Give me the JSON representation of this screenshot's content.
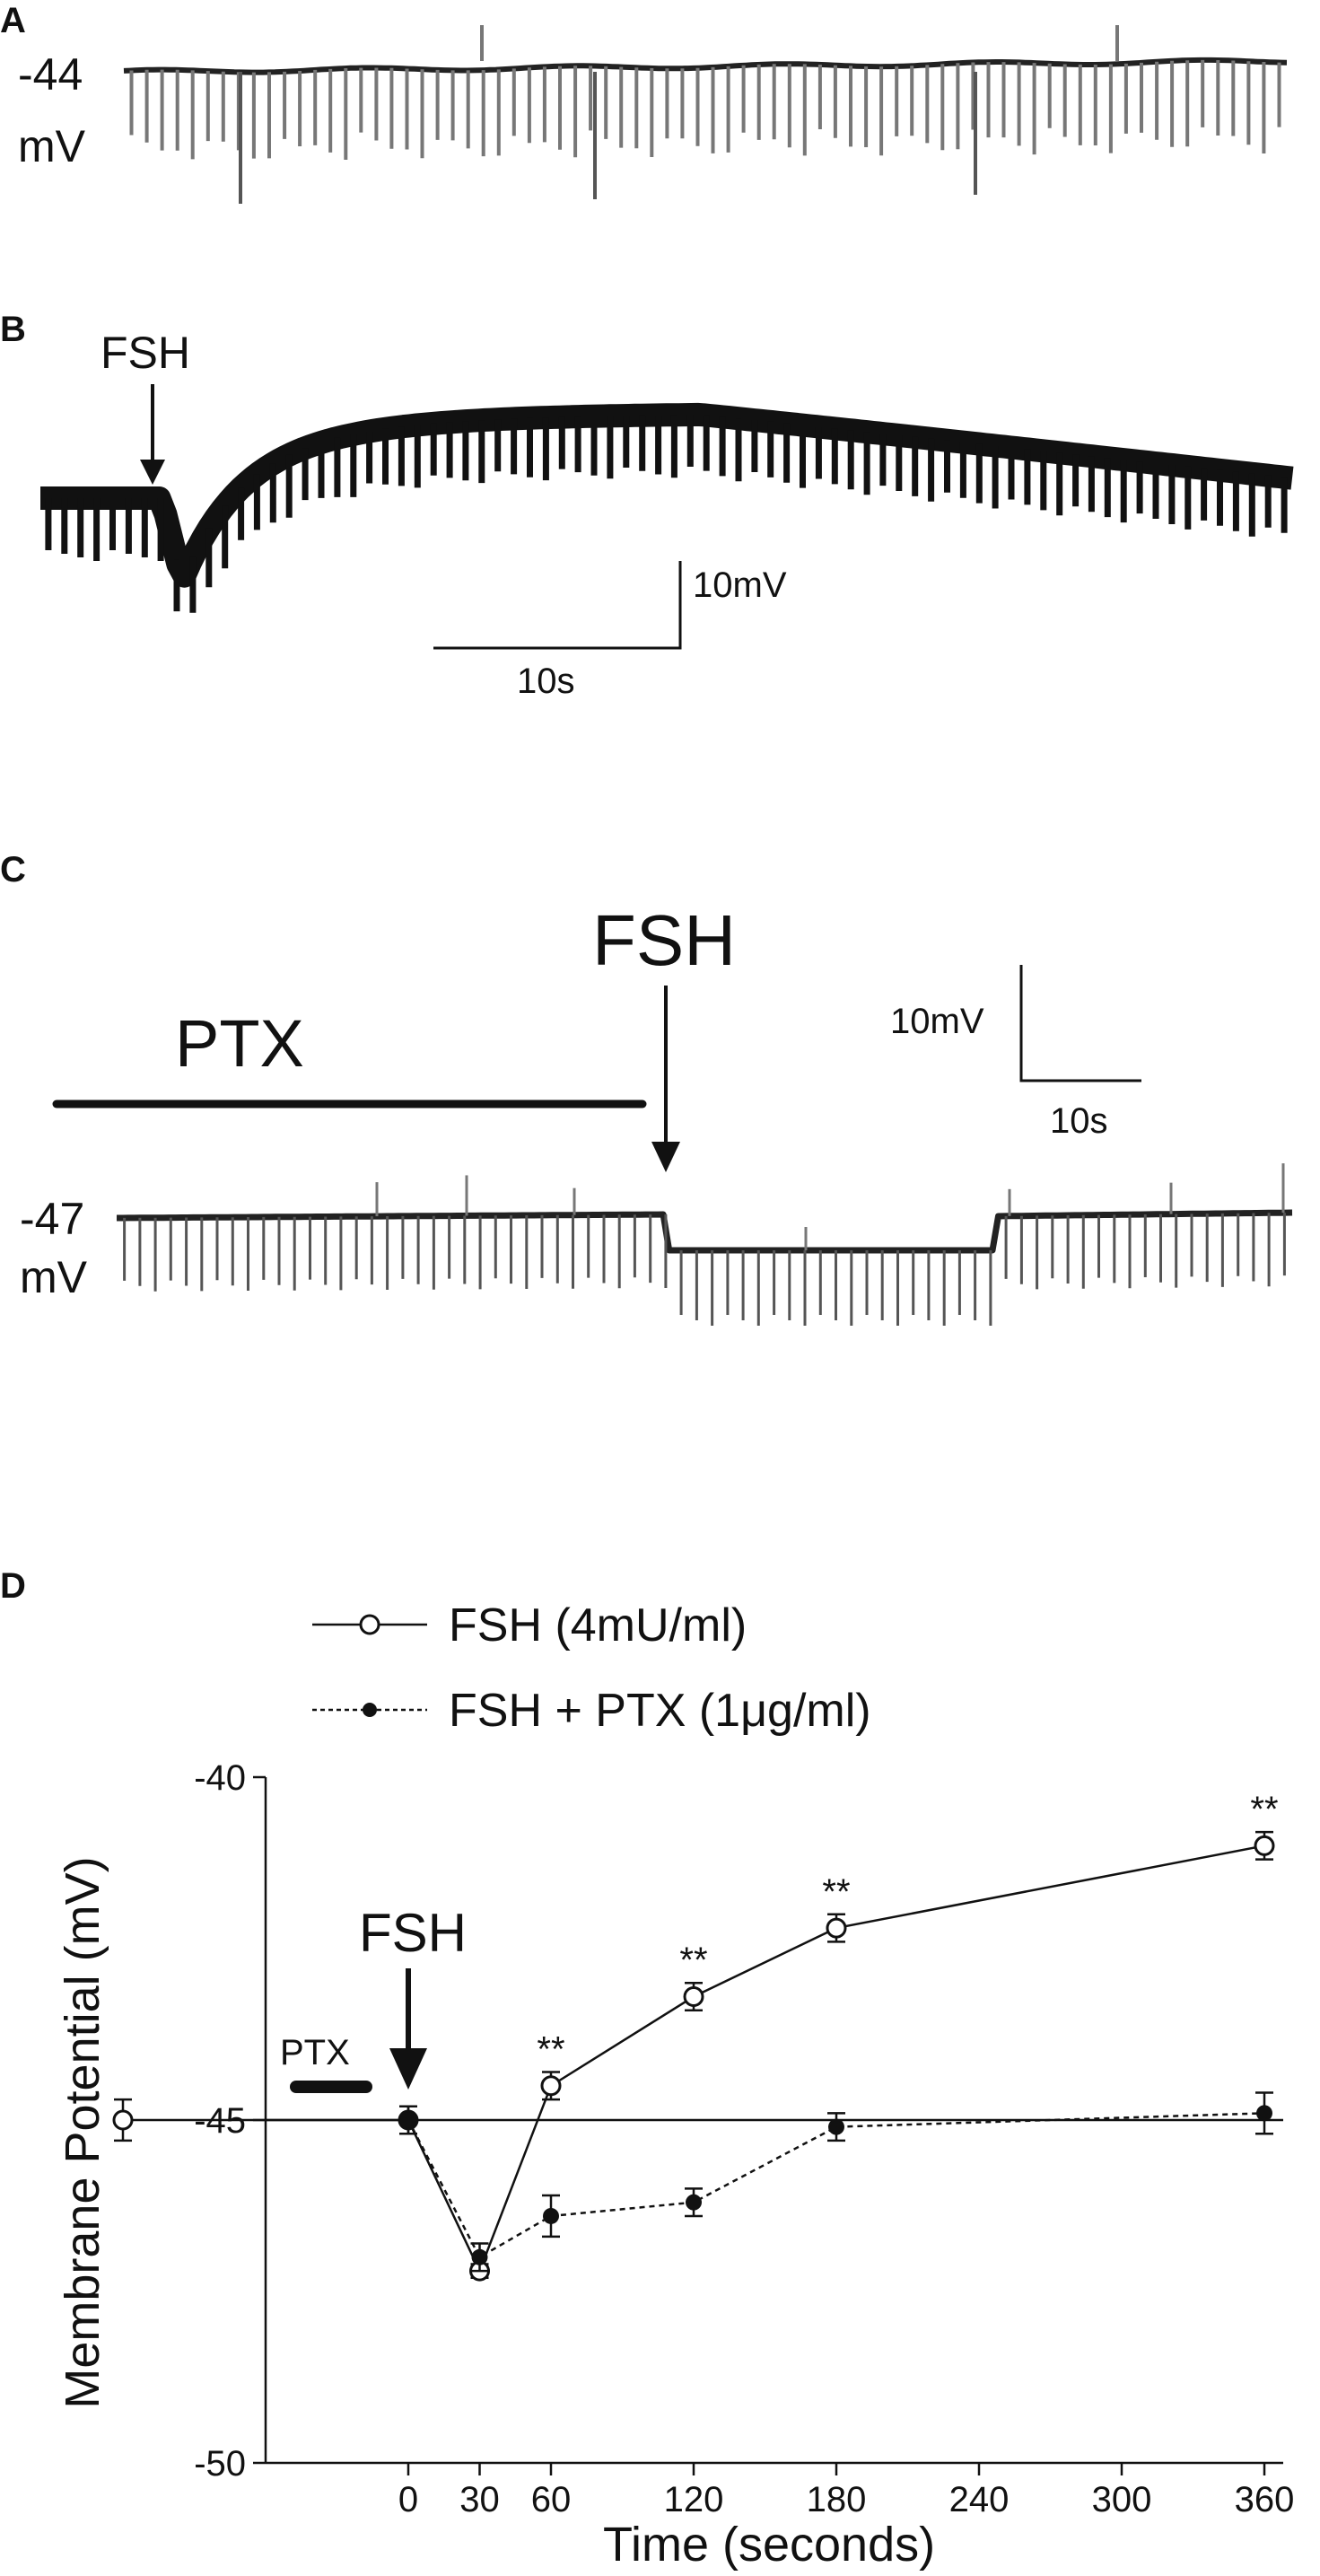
{
  "panels": {
    "a": {
      "letter": "A",
      "resting_value": "-44",
      "resting_unit": "mV"
    },
    "b": {
      "letter": "B",
      "stimulus": "FSH",
      "scale_y": "10mV",
      "scale_x": "10s"
    },
    "c": {
      "letter": "C",
      "stimulus": "FSH",
      "pretreatment": "PTX",
      "scale_y": "10mV",
      "scale_x": "10s",
      "resting_value": "-47",
      "resting_unit": "mV"
    },
    "d": {
      "letter": "D",
      "stimulus": "FSH",
      "pretreatment": "PTX"
    }
  },
  "colors": {
    "ink": "#111111",
    "trace": "#1a1a1a",
    "trace_grey": "#6a6a6a",
    "marker_open": "#ffffff",
    "marker_filled": "#111111"
  },
  "chart_data": {
    "type": "line",
    "title": "",
    "xlabel": "Time (seconds)",
    "ylabel": "Membrane Potential (mV)",
    "xlim": [
      -120,
      400
    ],
    "ylim": [
      -50,
      -40
    ],
    "xticks": [
      0,
      30,
      60,
      120,
      180,
      240,
      300,
      360
    ],
    "yticks": [
      -40,
      -45,
      -50
    ],
    "reference_line_y": -45,
    "legend_position": "top",
    "series": [
      {
        "name": "FSH (4mU/ml)",
        "marker": "open-circle",
        "line": "solid",
        "x": [
          -120,
          0,
          30,
          60,
          120,
          180,
          360
        ],
        "y": [
          -45.0,
          -45.0,
          -47.2,
          -44.5,
          -43.2,
          -42.2,
          -41.0
        ],
        "err": [
          0.3,
          0.2,
          0.1,
          0.2,
          0.2,
          0.2,
          0.2
        ],
        "significance": [
          "",
          "",
          "",
          "**",
          "**",
          "**",
          "**"
        ]
      },
      {
        "name": "FSH + PTX (1μg/ml)",
        "marker": "filled-circle",
        "line": "dashed",
        "x": [
          0,
          30,
          60,
          120,
          180,
          360
        ],
        "y": [
          -45.0,
          -47.0,
          -46.4,
          -46.2,
          -45.1,
          -44.9
        ],
        "err": [
          0.2,
          0.2,
          0.3,
          0.2,
          0.2,
          0.3
        ],
        "significance": [
          "",
          "",
          "",
          "",
          "",
          ""
        ]
      }
    ],
    "annotations": [
      {
        "text": "FSH",
        "at_x": 0
      },
      {
        "text": "PTX",
        "span_x": [
          -120,
          -30
        ]
      }
    ]
  }
}
